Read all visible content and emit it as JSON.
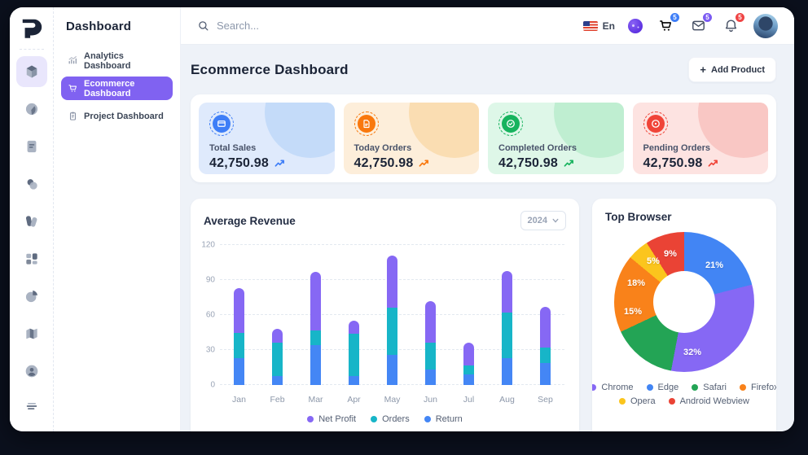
{
  "sidebar": {
    "title": "Dashboard",
    "items": [
      {
        "label": "Analytics Dashboard",
        "icon": "analytics-chart-icon",
        "active": false
      },
      {
        "label": "Ecommerce Dashboard",
        "icon": "cart-icon",
        "active": true
      },
      {
        "label": "Project Dashboard",
        "icon": "clipboard-icon",
        "active": false
      }
    ],
    "rail": [
      {
        "icon": "cube-icon",
        "active": true
      },
      {
        "icon": "gauge-icon",
        "active": false
      },
      {
        "icon": "document-icon",
        "active": false
      },
      {
        "icon": "users-icon",
        "active": false
      },
      {
        "icon": "swatches-icon",
        "active": false
      },
      {
        "icon": "widgets-icon",
        "active": false
      },
      {
        "icon": "pie-icon",
        "active": false
      },
      {
        "icon": "map-icon",
        "active": false
      },
      {
        "icon": "account-icon",
        "active": false
      }
    ],
    "rail_bottom_icon": "menu-icon"
  },
  "topbar": {
    "search_placeholder": "Search...",
    "language": "En",
    "actions": [
      {
        "name": "cart",
        "icon": "cart-icon",
        "badge": "5",
        "badge_color": "#3E7EF7"
      },
      {
        "name": "messages",
        "icon": "mail-icon",
        "badge": "5",
        "badge_color": "#7B5BF2"
      },
      {
        "name": "notifications",
        "icon": "bell-icon",
        "badge": "5",
        "badge_color": "#EF4444"
      }
    ]
  },
  "header": {
    "title": "Ecommerce Dashboard",
    "add_button": "Add Product"
  },
  "stats": {
    "cards": [
      {
        "label": "Total Sales",
        "value": "42,750.98",
        "icon": "card-icon",
        "accent": "#3E7EF7",
        "bg": "#dfeafc",
        "deco": "#c4dbf9"
      },
      {
        "label": "Today Orders",
        "value": "42,750.98",
        "icon": "file-icon",
        "accent": "#F9780D",
        "bg": "#fdeeda",
        "deco": "#faddb2"
      },
      {
        "label": "Completed Orders",
        "value": "42,750.98",
        "icon": "check-circle-icon",
        "accent": "#17B35E",
        "bg": "#def7e8",
        "deco": "#bfeed1"
      },
      {
        "label": "Pending Orders",
        "value": "42,750.98",
        "icon": "alert-circle-icon",
        "accent": "#F04438",
        "bg": "#fde3e1",
        "deco": "#f9c7c4"
      }
    ]
  },
  "revenue": {
    "year": "2024"
  },
  "chart_data": [
    {
      "type": "bar",
      "stacked": true,
      "title": "Average Revenue",
      "categories": [
        "Jan",
        "Feb",
        "Mar",
        "Apr",
        "May",
        "Jun",
        "Jul",
        "Aug",
        "Sep"
      ],
      "series": [
        {
          "name": "Return",
          "color": "#4486F5",
          "values": [
            23,
            8,
            34,
            8,
            26,
            13,
            9,
            23,
            19
          ]
        },
        {
          "name": "Orders",
          "color": "#17B5C8",
          "values": [
            22,
            28,
            13,
            36,
            40,
            23,
            8,
            39,
            13
          ]
        },
        {
          "name": "Net Profit",
          "color": "#8668F4",
          "values": [
            38,
            12,
            50,
            11,
            45,
            36,
            19,
            36,
            35
          ]
        }
      ],
      "legend_order": [
        "Net Profit",
        "Orders",
        "Return"
      ],
      "ylim": [
        0,
        120
      ],
      "yticks": [
        0,
        30,
        60,
        90,
        120
      ],
      "grid": "dashed-horizontal",
      "legend_position": "bottom"
    },
    {
      "type": "pie",
      "title": "Top Browser",
      "slices": [
        {
          "name": "Edge",
          "value": 21,
          "label": "21%",
          "color": "#4285F4"
        },
        {
          "name": "Chrome",
          "value": 32,
          "label": "32%",
          "color": "#8668F4"
        },
        {
          "name": "Safari",
          "value": 15,
          "label": "15%",
          "color": "#23A455"
        },
        {
          "name": "Firefox",
          "value": 18,
          "label": "18%",
          "color": "#F9821A"
        },
        {
          "name": "Opera",
          "value": 5,
          "label": "5%",
          "color": "#FBC51D"
        },
        {
          "name": "Android Webview",
          "value": 9,
          "label": "9%",
          "color": "#EA4335"
        }
      ],
      "legend_order": [
        "Chrome",
        "Edge",
        "Safari",
        "Firefox",
        "Opera",
        "Android Webview"
      ],
      "legend_position": "bottom",
      "donut": true
    }
  ]
}
